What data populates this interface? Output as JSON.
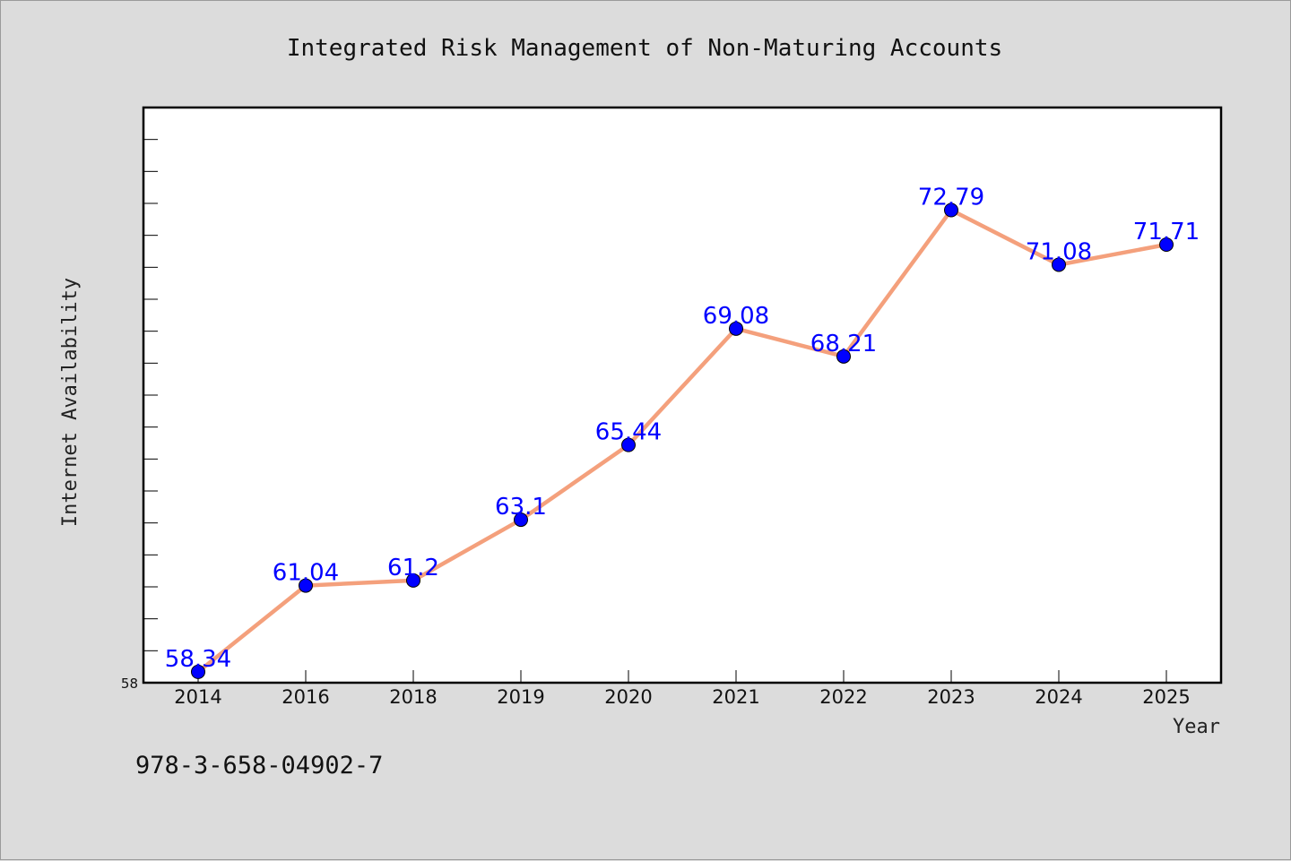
{
  "chart_data": {
    "type": "line",
    "title": "Integrated Risk Management of Non-Maturing Accounts",
    "xlabel": "Year",
    "ylabel": "Internet Availability",
    "categories": [
      "2014",
      "2016",
      "2018",
      "2019",
      "2020",
      "2021",
      "2022",
      "2023",
      "2024",
      "2025"
    ],
    "values": [
      58.34,
      61.04,
      61.2,
      63.1,
      65.44,
      69.08,
      68.21,
      72.79,
      71.08,
      71.71
    ],
    "data_labels": [
      "58.34",
      "61.04",
      "61.2",
      "63.1",
      "65.44",
      "69.08",
      "68.21",
      "72.79",
      "71.08",
      "71.71"
    ],
    "ylim": [
      58,
      76
    ],
    "yticks_labeled": [
      "58"
    ],
    "grid": false,
    "legend": "none",
    "colors": {
      "line": "#f4a07c",
      "marker": "#0000ff",
      "label": "#0000ff",
      "plot_bg": "#ffffff",
      "page_bg": "#dcdcdc"
    }
  },
  "footnote": "978-3-658-04902-7"
}
